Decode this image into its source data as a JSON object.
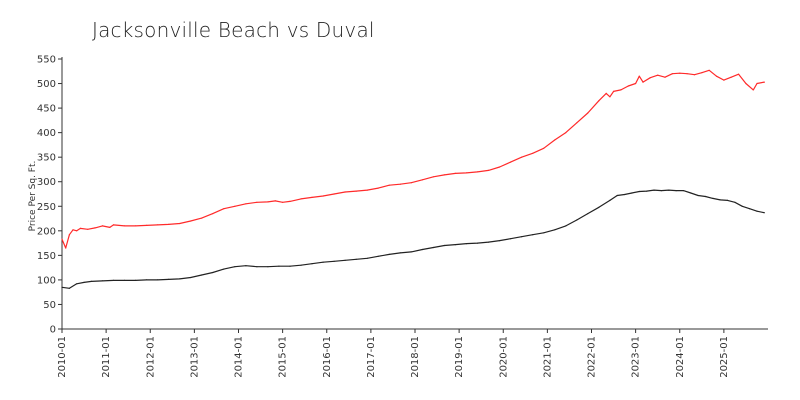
{
  "chart_data": {
    "type": "line",
    "title": "Jacksonville Beach vs Duval",
    "xlabel": "",
    "ylabel": "Price Per Sq. Ft.",
    "x_tick_labels": [
      "2010-01",
      "2011-01",
      "2012-01",
      "2013-01",
      "2014-01",
      "2015-01",
      "2016-01",
      "2017-01",
      "2018-01",
      "2019-01",
      "2020-01",
      "2021-01",
      "2022-01",
      "2023-01",
      "2024-01",
      "2025-01"
    ],
    "y_ticks": [
      0,
      50,
      100,
      150,
      200,
      250,
      300,
      350,
      400,
      450,
      500,
      550
    ],
    "xlim": [
      "2010-01",
      "2025-12"
    ],
    "ylim": [
      0,
      550
    ],
    "grid": false,
    "series": [
      {
        "color": "#ff2a2a",
        "points": [
          [
            "2010-01",
            183
          ],
          [
            "2010-02",
            165
          ],
          [
            "2010-03",
            192
          ],
          [
            "2010-04",
            202
          ],
          [
            "2010-05",
            200
          ],
          [
            "2010-06",
            205
          ],
          [
            "2010-08",
            203
          ],
          [
            "2010-10",
            206
          ],
          [
            "2010-12",
            210
          ],
          [
            "2011-02",
            207
          ],
          [
            "2011-03",
            212
          ],
          [
            "2011-06",
            210
          ],
          [
            "2011-09",
            210
          ],
          [
            "2011-12",
            211
          ],
          [
            "2012-03",
            212
          ],
          [
            "2012-06",
            213
          ],
          [
            "2012-09",
            215
          ],
          [
            "2012-12",
            220
          ],
          [
            "2013-03",
            226
          ],
          [
            "2013-06",
            235
          ],
          [
            "2013-09",
            245
          ],
          [
            "2013-12",
            250
          ],
          [
            "2014-03",
            255
          ],
          [
            "2014-06",
            258
          ],
          [
            "2014-09",
            259
          ],
          [
            "2014-11",
            261
          ],
          [
            "2015-01",
            258
          ],
          [
            "2015-03",
            260
          ],
          [
            "2015-06",
            265
          ],
          [
            "2015-09",
            268
          ],
          [
            "2015-12",
            271
          ],
          [
            "2016-03",
            275
          ],
          [
            "2016-06",
            279
          ],
          [
            "2016-09",
            281
          ],
          [
            "2016-12",
            283
          ],
          [
            "2017-03",
            287
          ],
          [
            "2017-06",
            293
          ],
          [
            "2017-09",
            295
          ],
          [
            "2017-12",
            298
          ],
          [
            "2018-03",
            304
          ],
          [
            "2018-06",
            310
          ],
          [
            "2018-09",
            314
          ],
          [
            "2018-12",
            317
          ],
          [
            "2019-03",
            318
          ],
          [
            "2019-06",
            320
          ],
          [
            "2019-09",
            323
          ],
          [
            "2019-12",
            330
          ],
          [
            "2020-03",
            340
          ],
          [
            "2020-06",
            350
          ],
          [
            "2020-09",
            358
          ],
          [
            "2020-12",
            368
          ],
          [
            "2021-03",
            385
          ],
          [
            "2021-06",
            400
          ],
          [
            "2021-09",
            420
          ],
          [
            "2021-12",
            440
          ],
          [
            "2022-03",
            465
          ],
          [
            "2022-05",
            480
          ],
          [
            "2022-06",
            473
          ],
          [
            "2022-07",
            484
          ],
          [
            "2022-09",
            487
          ],
          [
            "2022-11",
            495
          ],
          [
            "2023-01",
            500
          ],
          [
            "2023-02",
            515
          ],
          [
            "2023-03",
            503
          ],
          [
            "2023-05",
            512
          ],
          [
            "2023-07",
            517
          ],
          [
            "2023-09",
            513
          ],
          [
            "2023-11",
            520
          ],
          [
            "2024-01",
            521
          ],
          [
            "2024-03",
            520
          ],
          [
            "2024-05",
            518
          ],
          [
            "2024-07",
            522
          ],
          [
            "2024-09",
            527
          ],
          [
            "2024-11",
            515
          ],
          [
            "2025-01",
            507
          ],
          [
            "2025-03",
            513
          ],
          [
            "2025-05",
            519
          ],
          [
            "2025-07",
            500
          ],
          [
            "2025-09",
            487
          ],
          [
            "2025-10",
            500
          ],
          [
            "2025-12",
            503
          ]
        ]
      },
      {
        "color": "#222222",
        "points": [
          [
            "2010-01",
            85
          ],
          [
            "2010-03",
            83
          ],
          [
            "2010-05",
            92
          ],
          [
            "2010-07",
            95
          ],
          [
            "2010-09",
            97
          ],
          [
            "2010-12",
            98
          ],
          [
            "2011-03",
            99
          ],
          [
            "2011-06",
            99
          ],
          [
            "2011-09",
            99
          ],
          [
            "2011-12",
            100
          ],
          [
            "2012-03",
            100
          ],
          [
            "2012-06",
            101
          ],
          [
            "2012-09",
            102
          ],
          [
            "2012-12",
            105
          ],
          [
            "2013-03",
            110
          ],
          [
            "2013-06",
            115
          ],
          [
            "2013-09",
            122
          ],
          [
            "2013-12",
            127
          ],
          [
            "2014-03",
            129
          ],
          [
            "2014-06",
            127
          ],
          [
            "2014-09",
            127
          ],
          [
            "2014-12",
            128
          ],
          [
            "2015-03",
            128
          ],
          [
            "2015-06",
            130
          ],
          [
            "2015-09",
            133
          ],
          [
            "2015-12",
            136
          ],
          [
            "2016-03",
            138
          ],
          [
            "2016-06",
            140
          ],
          [
            "2016-09",
            142
          ],
          [
            "2016-12",
            144
          ],
          [
            "2017-03",
            148
          ],
          [
            "2017-06",
            152
          ],
          [
            "2017-09",
            155
          ],
          [
            "2017-12",
            157
          ],
          [
            "2018-03",
            162
          ],
          [
            "2018-06",
            166
          ],
          [
            "2018-09",
            170
          ],
          [
            "2018-12",
            172
          ],
          [
            "2019-03",
            174
          ],
          [
            "2019-06",
            175
          ],
          [
            "2019-09",
            177
          ],
          [
            "2019-12",
            180
          ],
          [
            "2020-03",
            184
          ],
          [
            "2020-06",
            188
          ],
          [
            "2020-09",
            192
          ],
          [
            "2020-12",
            196
          ],
          [
            "2021-03",
            202
          ],
          [
            "2021-06",
            210
          ],
          [
            "2021-09",
            222
          ],
          [
            "2021-12",
            235
          ],
          [
            "2022-03",
            248
          ],
          [
            "2022-06",
            262
          ],
          [
            "2022-08",
            272
          ],
          [
            "2022-10",
            274
          ],
          [
            "2022-12",
            277
          ],
          [
            "2023-02",
            280
          ],
          [
            "2023-04",
            281
          ],
          [
            "2023-06",
            283
          ],
          [
            "2023-08",
            282
          ],
          [
            "2023-10",
            283
          ],
          [
            "2023-12",
            282
          ],
          [
            "2024-02",
            282
          ],
          [
            "2024-04",
            277
          ],
          [
            "2024-06",
            272
          ],
          [
            "2024-08",
            270
          ],
          [
            "2024-10",
            266
          ],
          [
            "2024-12",
            263
          ],
          [
            "2025-02",
            262
          ],
          [
            "2025-04",
            258
          ],
          [
            "2025-06",
            250
          ],
          [
            "2025-08",
            245
          ],
          [
            "2025-10",
            240
          ],
          [
            "2025-12",
            237
          ]
        ]
      }
    ]
  }
}
